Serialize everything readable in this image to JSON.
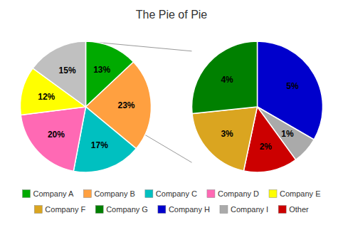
{
  "chart_data": [
    {
      "type": "pie",
      "title": "The Pie of Pie",
      "categories": [
        "Company A",
        "Company B",
        "Company C",
        "Company D",
        "Company E",
        null
      ],
      "values": [
        13,
        23,
        17,
        20,
        12,
        15
      ],
      "value_labels": [
        "13%",
        "23%",
        "17%",
        "20%",
        "12%",
        "15%"
      ],
      "colors": [
        "#00AA00",
        "#FFA040",
        "#00C0C0",
        "#FF69B4",
        "#FFFF00",
        "#C0C0C0"
      ],
      "data_labels": true,
      "legend": "bottom"
    },
    {
      "type": "pie",
      "categories": [
        "Company H",
        "Company I",
        "Other",
        "Company F",
        "Company G"
      ],
      "values": [
        5,
        1,
        2,
        3,
        4
      ],
      "value_labels": [
        "5%",
        "1%",
        "2%",
        "3%",
        "4%"
      ],
      "colors": [
        "#0000CC",
        "#AAAAAA",
        "#CC0000",
        "#DAA520",
        "#008000"
      ],
      "data_labels": true
    }
  ]
}
